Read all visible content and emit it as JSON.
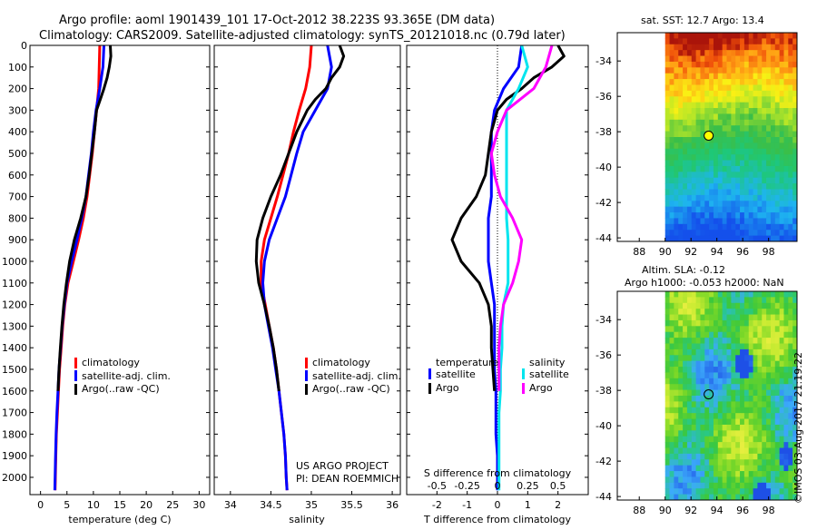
{
  "header": {
    "line1": "Argo profile: aoml 1901439_101 17-Oct-2012 38.223S 93.365E (DM data)",
    "line2": "Climatology: CARS2009. Satellite-adjusted climatology: synTS_20121018.nc (0.79d later)"
  },
  "stamp": "©IMOS 03-Aug-2017 21:19:22",
  "colors": {
    "clim": "#ff0000",
    "sat": "#0000ff",
    "argo": "#000000",
    "sat_s": "#00e5ee",
    "argo_s": "#ff00ff"
  },
  "chart_data": [
    {
      "type": "line",
      "xlabel": "temperature (deg C)",
      "ylim": [
        2080,
        0
      ],
      "yticks": [
        0,
        100,
        200,
        300,
        400,
        500,
        600,
        700,
        800,
        900,
        1000,
        1100,
        1200,
        1300,
        1400,
        1500,
        1600,
        1700,
        1800,
        1900,
        2000
      ],
      "xlim": [
        -2,
        32
      ],
      "xticks": [
        0,
        5,
        10,
        15,
        20,
        25,
        30
      ],
      "legend": [
        "climatology",
        "satellite-adj. clim.",
        "Argo(..raw -QC)"
      ],
      "series": [
        {
          "name": "climatology",
          "color": "clim",
          "points": [
            [
              11.2,
              0
            ],
            [
              11.1,
              100
            ],
            [
              11.0,
              200
            ],
            [
              10.6,
              300
            ],
            [
              10.2,
              400
            ],
            [
              9.8,
              500
            ],
            [
              9.3,
              600
            ],
            [
              8.8,
              700
            ],
            [
              8.1,
              800
            ],
            [
              7.2,
              900
            ],
            [
              6.2,
              1000
            ],
            [
              5.2,
              1100
            ],
            [
              4.6,
              1200
            ],
            [
              4.2,
              1300
            ],
            [
              3.9,
              1400
            ],
            [
              3.6,
              1500
            ],
            [
              3.4,
              1600
            ],
            [
              3.2,
              1700
            ],
            [
              3.0,
              1800
            ],
            [
              2.9,
              1900
            ],
            [
              2.8,
              2000
            ],
            [
              2.75,
              2060
            ]
          ]
        },
        {
          "name": "satellite-adj. clim.",
          "color": "sat",
          "points": [
            [
              12.0,
              0
            ],
            [
              11.8,
              100
            ],
            [
              11.2,
              200
            ],
            [
              10.5,
              300
            ],
            [
              10.0,
              400
            ],
            [
              9.6,
              500
            ],
            [
              9.1,
              600
            ],
            [
              8.6,
              700
            ],
            [
              7.8,
              800
            ],
            [
              6.9,
              900
            ],
            [
              5.9,
              1000
            ],
            [
              5.0,
              1100
            ],
            [
              4.5,
              1200
            ],
            [
              4.1,
              1300
            ],
            [
              3.8,
              1400
            ],
            [
              3.5,
              1500
            ],
            [
              3.3,
              1600
            ],
            [
              3.1,
              1700
            ],
            [
              2.95,
              1800
            ],
            [
              2.85,
              1900
            ],
            [
              2.75,
              2000
            ],
            [
              2.7,
              2060
            ]
          ]
        },
        {
          "name": "Argo(..raw -QC)",
          "color": "argo",
          "points": [
            [
              13.2,
              0
            ],
            [
              13.3,
              50
            ],
            [
              13.0,
              100
            ],
            [
              12.6,
              150
            ],
            [
              12.0,
              200
            ],
            [
              11.3,
              250
            ],
            [
              10.6,
              300
            ],
            [
              10.2,
              400
            ],
            [
              9.7,
              500
            ],
            [
              9.2,
              600
            ],
            [
              8.6,
              700
            ],
            [
              7.6,
              800
            ],
            [
              6.4,
              900
            ],
            [
              5.5,
              1000
            ],
            [
              4.9,
              1100
            ],
            [
              4.4,
              1200
            ],
            [
              4.05,
              1300
            ],
            [
              3.75,
              1400
            ],
            [
              3.5,
              1500
            ],
            [
              3.3,
              1600
            ]
          ]
        }
      ]
    },
    {
      "type": "line",
      "xlabel": "salinity",
      "ylim": [
        2080,
        0
      ],
      "xlim": [
        33.8,
        36.1
      ],
      "xticks": [
        34,
        34.5,
        35,
        35.5,
        36
      ],
      "legend": [
        "climatology",
        "satellite-adj. clim.",
        "Argo(..raw -QC)"
      ],
      "annotation": [
        "US ARGO PROJECT",
        "PI: DEAN ROEMMICH"
      ],
      "series": [
        {
          "name": "climatology",
          "color": "clim",
          "points": [
            [
              35.0,
              0
            ],
            [
              34.98,
              100
            ],
            [
              34.93,
              200
            ],
            [
              34.85,
              300
            ],
            [
              34.78,
              400
            ],
            [
              34.72,
              500
            ],
            [
              34.65,
              600
            ],
            [
              34.58,
              700
            ],
            [
              34.5,
              800
            ],
            [
              34.42,
              900
            ],
            [
              34.38,
              1000
            ],
            [
              34.38,
              1100
            ],
            [
              34.43,
              1200
            ],
            [
              34.48,
              1300
            ],
            [
              34.53,
              1400
            ],
            [
              34.57,
              1500
            ],
            [
              34.6,
              1600
            ],
            [
              34.63,
              1700
            ],
            [
              34.66,
              1800
            ],
            [
              34.68,
              1900
            ],
            [
              34.69,
              2000
            ],
            [
              34.7,
              2060
            ]
          ]
        },
        {
          "name": "satellite-adj. clim.",
          "color": "sat",
          "points": [
            [
              35.2,
              0
            ],
            [
              35.25,
              100
            ],
            [
              35.2,
              200
            ],
            [
              35.05,
              300
            ],
            [
              34.9,
              400
            ],
            [
              34.82,
              500
            ],
            [
              34.75,
              600
            ],
            [
              34.68,
              700
            ],
            [
              34.58,
              800
            ],
            [
              34.48,
              900
            ],
            [
              34.42,
              1000
            ],
            [
              34.4,
              1100
            ],
            [
              34.42,
              1200
            ],
            [
              34.47,
              1300
            ],
            [
              34.52,
              1400
            ],
            [
              34.56,
              1500
            ],
            [
              34.6,
              1600
            ],
            [
              34.63,
              1700
            ],
            [
              34.66,
              1800
            ],
            [
              34.68,
              1900
            ],
            [
              34.69,
              2000
            ],
            [
              34.7,
              2060
            ]
          ]
        },
        {
          "name": "Argo(..raw -QC)",
          "color": "argo",
          "points": [
            [
              35.35,
              0
            ],
            [
              35.4,
              50
            ],
            [
              35.35,
              100
            ],
            [
              35.25,
              150
            ],
            [
              35.18,
              200
            ],
            [
              35.05,
              250
            ],
            [
              34.95,
              300
            ],
            [
              34.82,
              400
            ],
            [
              34.72,
              500
            ],
            [
              34.62,
              600
            ],
            [
              34.5,
              700
            ],
            [
              34.4,
              800
            ],
            [
              34.33,
              900
            ],
            [
              34.32,
              1000
            ],
            [
              34.35,
              1100
            ],
            [
              34.42,
              1200
            ],
            [
              34.48,
              1300
            ],
            [
              34.53,
              1400
            ],
            [
              34.57,
              1500
            ],
            [
              34.6,
              1600
            ]
          ]
        }
      ]
    },
    {
      "type": "line",
      "xlabel": "T difference from climatology",
      "xlabel2": "S difference from climatology",
      "ylim": [
        2080,
        0
      ],
      "xlim": [
        -3,
        3
      ],
      "xticks": [
        -2,
        -1,
        0,
        1,
        2
      ],
      "xticks2": [
        "-0.5",
        "-0.25",
        "0",
        "0.25",
        "0.5"
      ],
      "legend_headers": [
        "temperature",
        "salinity"
      ],
      "legend": [
        "satellite",
        "Argo",
        "satellite",
        "Argo"
      ],
      "series": [
        {
          "name": "satellite",
          "color": "sat",
          "points": [
            [
              0.8,
              0
            ],
            [
              0.7,
              100
            ],
            [
              0.2,
              200
            ],
            [
              -0.1,
              300
            ],
            [
              -0.2,
              400
            ],
            [
              -0.2,
              500
            ],
            [
              -0.2,
              600
            ],
            [
              -0.2,
              700
            ],
            [
              -0.3,
              800
            ],
            [
              -0.3,
              900
            ],
            [
              -0.3,
              1000
            ],
            [
              -0.2,
              1100
            ],
            [
              -0.1,
              1200
            ],
            [
              -0.1,
              1300
            ],
            [
              -0.1,
              1400
            ],
            [
              -0.1,
              1500
            ],
            [
              -0.05,
              1600
            ],
            [
              -0.05,
              1700
            ],
            [
              -0.05,
              1800
            ],
            [
              0,
              1900
            ],
            [
              0,
              2000
            ],
            [
              0,
              2060
            ]
          ]
        },
        {
          "name": "Argo",
          "color": "argo",
          "points": [
            [
              2.0,
              0
            ],
            [
              2.2,
              50
            ],
            [
              1.8,
              100
            ],
            [
              1.2,
              150
            ],
            [
              0.8,
              200
            ],
            [
              0.3,
              250
            ],
            [
              0,
              300
            ],
            [
              -0.2,
              400
            ],
            [
              -0.3,
              500
            ],
            [
              -0.4,
              600
            ],
            [
              -0.7,
              700
            ],
            [
              -1.2,
              800
            ],
            [
              -1.5,
              900
            ],
            [
              -1.2,
              1000
            ],
            [
              -0.6,
              1100
            ],
            [
              -0.3,
              1200
            ],
            [
              -0.2,
              1300
            ],
            [
              -0.2,
              1400
            ],
            [
              -0.15,
              1500
            ],
            [
              -0.1,
              1600
            ]
          ]
        },
        {
          "name": "satellite",
          "color": "sat_s",
          "points": [
            [
              0.8,
              0
            ],
            [
              1.0,
              100
            ],
            [
              0.7,
              200
            ],
            [
              0.3,
              300
            ],
            [
              0.3,
              400
            ],
            [
              0.3,
              500
            ],
            [
              0.3,
              600
            ],
            [
              0.3,
              700
            ],
            [
              0.3,
              800
            ],
            [
              0.35,
              900
            ],
            [
              0.35,
              1000
            ],
            [
              0.35,
              1100
            ],
            [
              0.2,
              1200
            ],
            [
              0.15,
              1300
            ],
            [
              0.15,
              1400
            ],
            [
              0.1,
              1500
            ],
            [
              0.1,
              1600
            ],
            [
              0.05,
              1700
            ],
            [
              0.05,
              1800
            ],
            [
              0.05,
              1900
            ],
            [
              0.05,
              2000
            ],
            [
              0.05,
              2060
            ]
          ]
        },
        {
          "name": "Argo",
          "color": "argo_s",
          "points": [
            [
              1.8,
              0
            ],
            [
              1.6,
              100
            ],
            [
              1.2,
              200
            ],
            [
              0.3,
              300
            ],
            [
              0,
              400
            ],
            [
              -0.2,
              500
            ],
            [
              -0.1,
              600
            ],
            [
              0.1,
              700
            ],
            [
              0.5,
              800
            ],
            [
              0.8,
              900
            ],
            [
              0.7,
              1000
            ],
            [
              0.5,
              1100
            ],
            [
              0.2,
              1200
            ],
            [
              0.1,
              1300
            ],
            [
              0.05,
              1400
            ],
            [
              0.05,
              1500
            ],
            [
              0.05,
              1600
            ]
          ]
        }
      ]
    },
    {
      "type": "heatmap",
      "title": "sat. SST: 12.7 Argo: 13.4",
      "xticks": [
        88,
        90,
        92,
        94,
        96,
        98
      ],
      "yticks": [
        -34,
        -36,
        -38,
        -40,
        -42,
        -44
      ],
      "xlim": [
        86.3,
        100.2
      ],
      "ylim": [
        -44.2,
        -32.4
      ],
      "data_lon": [
        90,
        100
      ],
      "marker": {
        "lon": 93.365,
        "lat": -38.223
      }
    },
    {
      "type": "heatmap",
      "title": "Altim. SLA: -0.12",
      "subtitle": "Argo h1000: -0.053 h2000: NaN",
      "xticks": [
        88,
        90,
        92,
        94,
        96,
        98
      ],
      "yticks": [
        -34,
        -36,
        -38,
        -40,
        -42,
        -44
      ],
      "xlim": [
        86.3,
        100.2
      ],
      "ylim": [
        -44.2,
        -32.4
      ],
      "data_lon": [
        90,
        100
      ],
      "marker": {
        "lon": 93.365,
        "lat": -38.223
      }
    }
  ]
}
